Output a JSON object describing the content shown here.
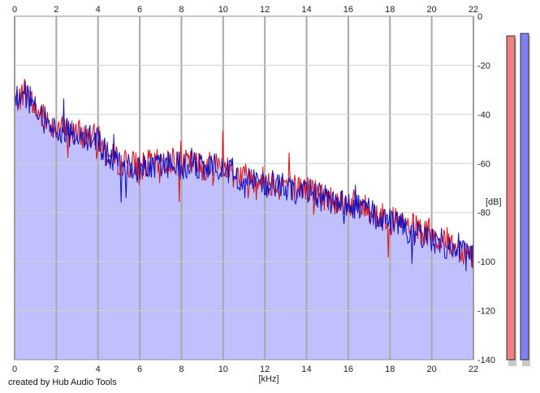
{
  "chart_data": {
    "type": "area",
    "title": "",
    "xlabel": "[kHz]",
    "ylabel": "[dB]",
    "xlim": [
      0,
      22
    ],
    "ylim": [
      -140,
      0
    ],
    "grid": true,
    "x_ticks": [
      "0",
      "2",
      "4",
      "6",
      "8",
      "10",
      "12",
      "14",
      "16",
      "18",
      "20",
      "22"
    ],
    "y_ticks": [
      "0",
      "-20",
      "-40",
      "-60",
      "-80",
      "-100",
      "-120",
      "-140"
    ],
    "colors": {
      "fill": "#c0c0ff",
      "left_channel": "#e01010",
      "right_channel": "#1010c0",
      "grid": "#a8a8a8"
    },
    "series": [
      {
        "channel": "left",
        "color": "#e01010",
        "x": [
          0,
          0.5,
          1,
          1.5,
          2,
          2.5,
          3,
          3.5,
          4,
          4.5,
          5,
          5.5,
          6,
          6.5,
          7,
          7.5,
          8,
          8.5,
          9,
          9.5,
          10,
          10.5,
          11,
          11.5,
          12,
          12.5,
          13,
          13.5,
          14,
          14.5,
          15,
          15.5,
          16,
          16.5,
          17,
          17.5,
          18,
          18.5,
          19,
          19.5,
          20,
          20.5,
          21,
          21.5,
          22
        ],
        "values": [
          -35,
          -30,
          -38,
          -42,
          -45,
          -47,
          -48,
          -49,
          -50,
          -57,
          -59,
          -60,
          -61,
          -60,
          -60,
          -59,
          -60,
          -60,
          -61,
          -61,
          -60,
          -64,
          -65,
          -66,
          -67,
          -68,
          -68,
          -70,
          -70,
          -72,
          -74,
          -75,
          -76,
          -77,
          -79,
          -81,
          -83,
          -85,
          -86,
          -88,
          -90,
          -91,
          -93,
          -95,
          -97
        ]
      },
      {
        "channel": "right",
        "color": "#1010c0",
        "x": [
          0,
          0.5,
          1,
          1.5,
          2,
          2.5,
          3,
          3.5,
          4,
          4.5,
          5,
          5.5,
          6,
          6.5,
          7,
          7.5,
          8,
          8.5,
          9,
          9.5,
          10,
          10.5,
          11,
          11.5,
          12,
          12.5,
          13,
          13.5,
          14,
          14.5,
          15,
          15.5,
          16,
          16.5,
          17,
          17.5,
          18,
          18.5,
          19,
          19.5,
          20,
          20.5,
          21,
          21.5,
          22
        ],
        "values": [
          -34,
          -31,
          -38,
          -43,
          -46,
          -48,
          -48,
          -50,
          -51,
          -58,
          -60,
          -61,
          -62,
          -61,
          -61,
          -60,
          -61,
          -60,
          -62,
          -62,
          -61,
          -65,
          -66,
          -67,
          -68,
          -69,
          -69,
          -71,
          -71,
          -73,
          -75,
          -76,
          -77,
          -78,
          -80,
          -82,
          -84,
          -86,
          -87,
          -89,
          -91,
          -92,
          -94,
          -96,
          -99
        ]
      }
    ],
    "level_meters": [
      {
        "channel": "left",
        "color": "#f08080",
        "value_db": -8
      },
      {
        "channel": "right",
        "color": "#8080f0",
        "value_db": -7
      }
    ]
  },
  "footer": {
    "credit": "created by Hub Audio Tools"
  }
}
